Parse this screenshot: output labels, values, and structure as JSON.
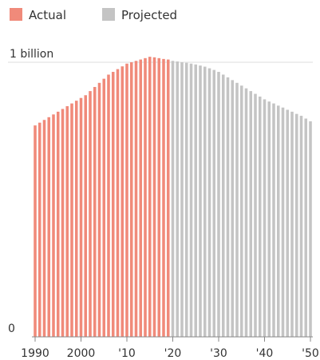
{
  "chart_data": {
    "type": "bar",
    "legend": [
      {
        "name": "Actual",
        "color": "#f08a7a"
      },
      {
        "name": "Projected",
        "color": "#c4c4c4"
      }
    ],
    "legend_placement": "top-left",
    "x_range": [
      1990,
      2050
    ],
    "actual_years": [
      1990,
      2019
    ],
    "projected_years": [
      2020,
      2050
    ],
    "x_ticks": [
      {
        "value": 1990,
        "label": "1990"
      },
      {
        "value": 2000,
        "label": "2000"
      },
      {
        "value": 2010,
        "label": "'10"
      },
      {
        "value": 2020,
        "label": "'20"
      },
      {
        "value": 2030,
        "label": "'30"
      },
      {
        "value": 2040,
        "label": "'40"
      },
      {
        "value": 2050,
        "label": "'50"
      }
    ],
    "y_range": [
      0,
      1.0
    ],
    "y_ticks": [
      {
        "value": 0,
        "label": "0"
      },
      {
        "value": 1.0,
        "label": "1 billion"
      }
    ],
    "grid": "horizontal at 1 billion",
    "unit": "billion",
    "x": [
      1990,
      1991,
      1992,
      1993,
      1994,
      1995,
      1996,
      1997,
      1998,
      1999,
      2000,
      2001,
      2002,
      2003,
      2004,
      2005,
      2006,
      2007,
      2008,
      2009,
      2010,
      2011,
      2012,
      2013,
      2014,
      2015,
      2016,
      2017,
      2018,
      2019,
      2020,
      2021,
      2022,
      2023,
      2024,
      2025,
      2026,
      2027,
      2028,
      2029,
      2030,
      2031,
      2032,
      2033,
      2034,
      2035,
      2036,
      2037,
      2038,
      2039,
      2040,
      2041,
      2042,
      2043,
      2044,
      2045,
      2046,
      2047,
      2048,
      2049,
      2050
    ],
    "values": [
      0.77,
      0.78,
      0.79,
      0.8,
      0.81,
      0.82,
      0.83,
      0.84,
      0.85,
      0.86,
      0.87,
      0.88,
      0.895,
      0.91,
      0.925,
      0.94,
      0.955,
      0.965,
      0.975,
      0.985,
      0.995,
      1.0,
      1.005,
      1.01,
      1.015,
      1.02,
      1.018,
      1.015,
      1.012,
      1.01,
      1.005,
      1.003,
      1.0,
      0.998,
      0.995,
      0.992,
      0.988,
      0.984,
      0.978,
      0.972,
      0.965,
      0.955,
      0.945,
      0.935,
      0.925,
      0.915,
      0.905,
      0.895,
      0.885,
      0.875,
      0.865,
      0.857,
      0.85,
      0.842,
      0.835,
      0.827,
      0.82,
      0.812,
      0.805,
      0.795,
      0.785
    ]
  }
}
